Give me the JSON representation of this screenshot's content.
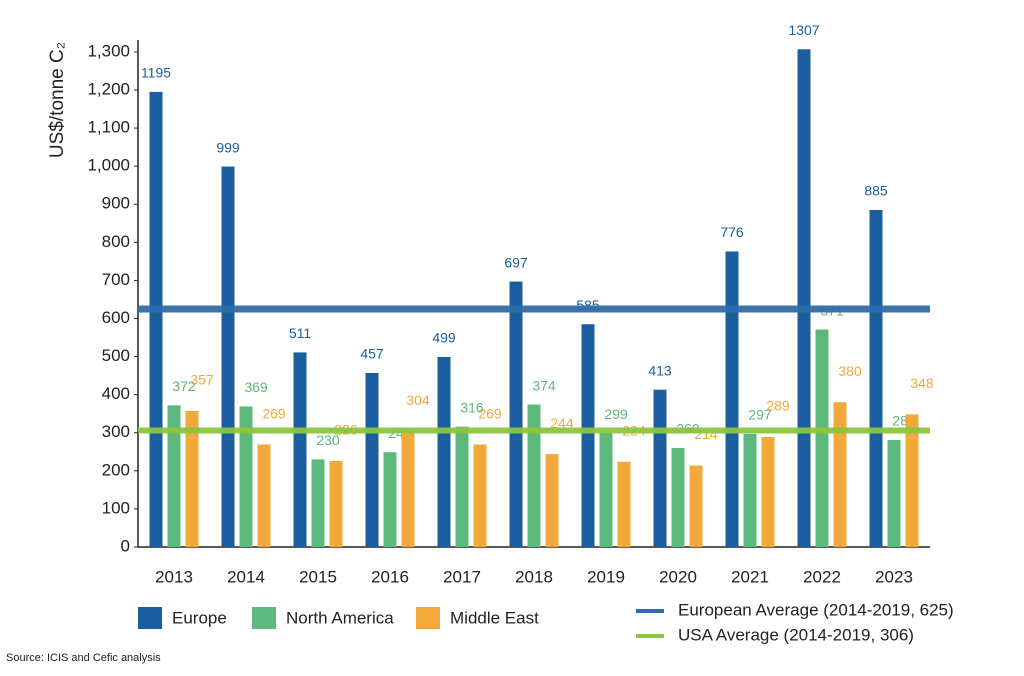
{
  "chart_data": {
    "type": "bar",
    "y_label": "US$/tonne C₂",
    "source": "Source: ICIS and Cefic analysis",
    "categories": [
      "2013",
      "2014",
      "2015",
      "2016",
      "2017",
      "2018",
      "2019",
      "2020",
      "2021",
      "2022",
      "2023"
    ],
    "series": [
      {
        "name": "Europe",
        "color": "#1b5e9f",
        "values": [
          1195,
          999,
          511,
          457,
          499,
          697,
          585,
          413,
          776,
          1307,
          885
        ]
      },
      {
        "name": "North America",
        "color": "#5cb87c",
        "values": [
          372,
          369,
          230,
          249,
          316,
          374,
          299,
          260,
          297,
          571,
          281
        ]
      },
      {
        "name": "Middle East",
        "color": "#f2a83a",
        "values": [
          357,
          269,
          226,
          304,
          269,
          244,
          224,
          214,
          289,
          380,
          348
        ]
      }
    ],
    "reference_lines": [
      {
        "name": "European Average (2014-2019, 625)",
        "value": 625,
        "color": "#2e6ea8"
      },
      {
        "name": "USA Average (2014-2019, 306)",
        "value": 306,
        "color": "#8cc63f"
      }
    ],
    "ylim": [
      0,
      1330
    ],
    "yticks": [
      0,
      100,
      200,
      300,
      400,
      500,
      600,
      700,
      800,
      900,
      {
        "value": 1000,
        "label": "1,000"
      },
      {
        "value": 1100,
        "label": "1,100"
      },
      {
        "value": 1200,
        "label": "1,200"
      },
      {
        "value": 1300,
        "label": "1,300"
      }
    ],
    "grid": false
  }
}
